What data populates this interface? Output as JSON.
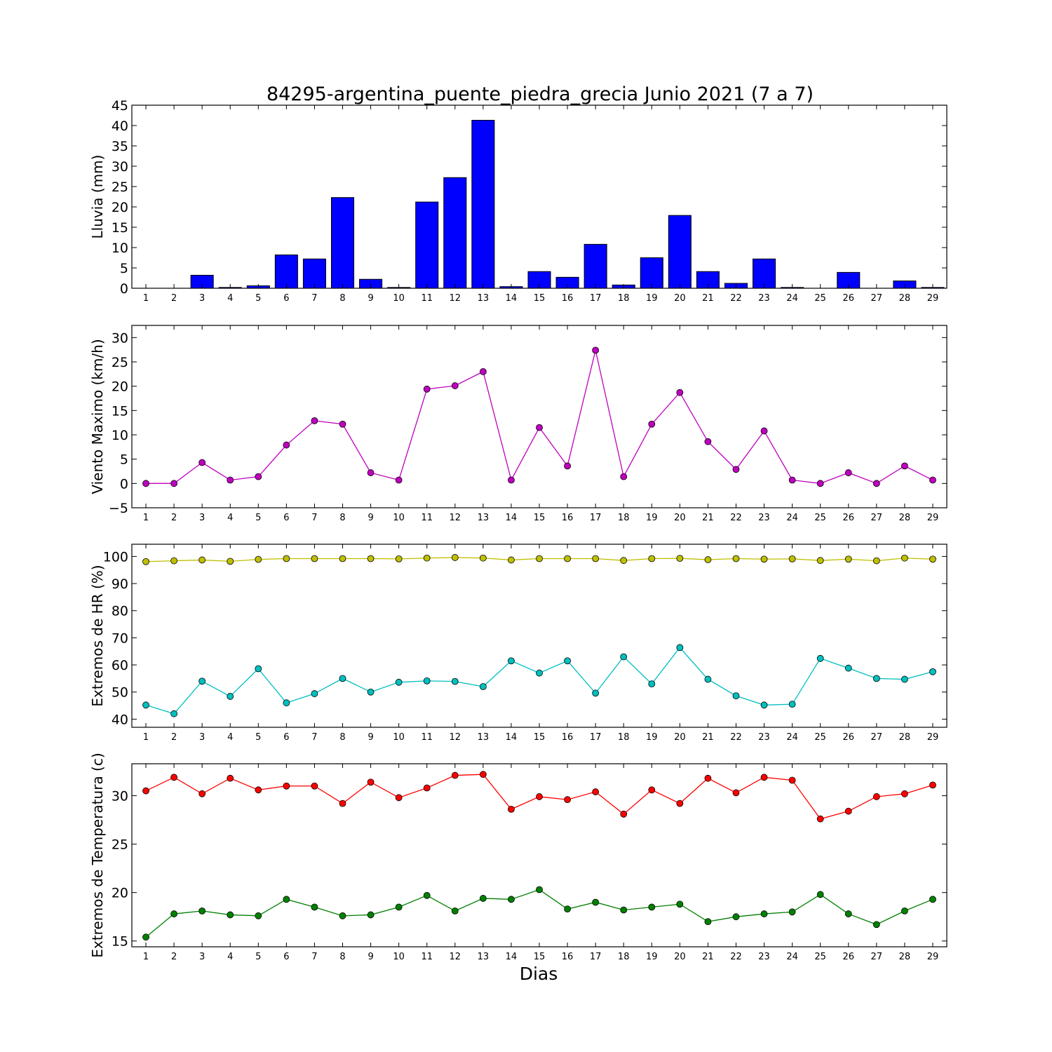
{
  "title": "84295-argentina_puente_piedra_grecia Junio 2021  (7 a 7)",
  "xlabel": "Dias",
  "chart_data": [
    {
      "type": "bar",
      "ylabel": "Lluvia (mm)",
      "ylim": [
        0,
        45
      ],
      "yticks": [
        0,
        5,
        10,
        15,
        20,
        25,
        30,
        35,
        40,
        45
      ],
      "x": [
        1,
        2,
        3,
        4,
        5,
        6,
        7,
        8,
        9,
        10,
        11,
        12,
        13,
        14,
        15,
        16,
        17,
        18,
        19,
        20,
        21,
        22,
        23,
        24,
        25,
        26,
        27,
        28,
        29
      ],
      "series": [
        {
          "color": "#0000ff",
          "values": [
            0,
            0,
            3.2,
            0.2,
            0.6,
            8.2,
            7.2,
            22.3,
            2.2,
            0.2,
            21.2,
            27.2,
            41.3,
            0.4,
            4.1,
            2.7,
            10.8,
            0.8,
            7.5,
            17.9,
            4.1,
            1.2,
            7.2,
            0.2,
            0,
            3.9,
            0,
            1.8,
            0.2
          ]
        }
      ]
    },
    {
      "type": "line",
      "ylabel": "Viento Maximo (km/h)",
      "ylim": [
        -5,
        32.5
      ],
      "yticks": [
        -5,
        0,
        5,
        10,
        15,
        20,
        25,
        30
      ],
      "x": [
        1,
        2,
        3,
        4,
        5,
        6,
        7,
        8,
        9,
        10,
        11,
        12,
        13,
        14,
        15,
        16,
        17,
        18,
        19,
        20,
        21,
        22,
        23,
        24,
        25,
        26,
        27,
        28,
        29
      ],
      "series": [
        {
          "color": "#bf00bf",
          "values": [
            0,
            0,
            4.3,
            0.7,
            1.4,
            7.9,
            12.9,
            12.2,
            2.2,
            0.7,
            19.4,
            20.1,
            23,
            0.7,
            11.5,
            3.6,
            27.4,
            1.4,
            12.2,
            18.7,
            8.6,
            2.9,
            10.8,
            0.7,
            0,
            2.2,
            0,
            3.6,
            0.7
          ]
        }
      ]
    },
    {
      "type": "line",
      "ylabel": "Extremos de HR (%)",
      "ylim": [
        37,
        104.5
      ],
      "yticks": [
        40,
        50,
        60,
        70,
        80,
        90,
        100
      ],
      "x": [
        1,
        2,
        3,
        4,
        5,
        6,
        7,
        8,
        9,
        10,
        11,
        12,
        13,
        14,
        15,
        16,
        17,
        18,
        19,
        20,
        21,
        22,
        23,
        24,
        25,
        26,
        27,
        28,
        29
      ],
      "series": [
        {
          "color": "#bfbf00",
          "values": [
            98.1,
            98.4,
            98.7,
            98.2,
            98.9,
            99.2,
            99.2,
            99.2,
            99.2,
            99.1,
            99.4,
            99.6,
            99.4,
            98.7,
            99.2,
            99.2,
            99.2,
            98.5,
            99.2,
            99.3,
            98.8,
            99.2,
            99,
            99.1,
            98.5,
            99,
            98.4,
            99.4,
            99
          ]
        },
        {
          "color": "#00bfbf",
          "values": [
            45.2,
            42,
            54,
            48.4,
            58.6,
            46,
            49.4,
            55,
            50,
            53.6,
            54.1,
            53.9,
            52,
            61.5,
            57,
            61.5,
            49.6,
            63,
            53,
            66.4,
            54.7,
            48.6,
            45.2,
            45.5,
            62.4,
            58.8,
            55,
            54.7,
            57.5
          ]
        }
      ]
    },
    {
      "type": "line",
      "ylabel": "Extremos de Temperatura (c)",
      "ylim": [
        14.4,
        33.3
      ],
      "yticks": [
        15,
        20,
        25,
        30
      ],
      "x": [
        1,
        2,
        3,
        4,
        5,
        6,
        7,
        8,
        9,
        10,
        11,
        12,
        13,
        14,
        15,
        16,
        17,
        18,
        19,
        20,
        21,
        22,
        23,
        24,
        25,
        26,
        27,
        28,
        29
      ],
      "series": [
        {
          "color": "#ff0000",
          "values": [
            30.5,
            31.9,
            30.2,
            31.8,
            30.6,
            31,
            31,
            29.2,
            31.4,
            29.8,
            30.8,
            32.1,
            32.2,
            28.6,
            29.9,
            29.6,
            30.4,
            28.1,
            30.6,
            29.2,
            31.8,
            30.3,
            31.9,
            31.6,
            27.6,
            28.4,
            29.9,
            30.2,
            31.1
          ]
        },
        {
          "color": "#008000",
          "values": [
            15.4,
            17.8,
            18.1,
            17.7,
            17.6,
            19.3,
            18.5,
            17.6,
            17.7,
            18.5,
            19.7,
            18.1,
            19.4,
            19.3,
            20.3,
            18.3,
            19,
            18.2,
            18.5,
            18.8,
            17,
            17.5,
            17.8,
            18,
            19.8,
            17.8,
            16.7,
            18.1,
            19.3
          ]
        }
      ]
    }
  ]
}
